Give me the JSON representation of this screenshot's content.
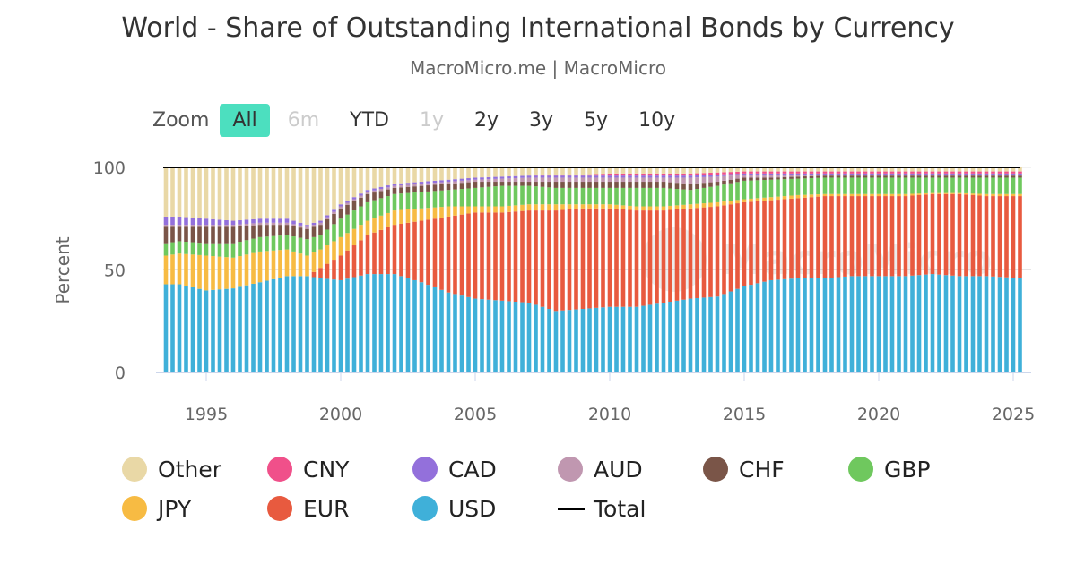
{
  "title": "World - Share of Outstanding International Bonds by Currency",
  "subtitle": "MacroMicro.me | MacroMicro",
  "zoom": {
    "label": "Zoom",
    "buttons": [
      {
        "label": "All",
        "state": "active"
      },
      {
        "label": "6m",
        "state": "disabled"
      },
      {
        "label": "YTD",
        "state": "normal"
      },
      {
        "label": "1y",
        "state": "disabled"
      },
      {
        "label": "2y",
        "state": "normal"
      },
      {
        "label": "3y",
        "state": "normal"
      },
      {
        "label": "5y",
        "state": "normal"
      },
      {
        "label": "10y",
        "state": "normal"
      }
    ]
  },
  "watermark": "MacroMicro",
  "chart_data": {
    "type": "bar",
    "stacked": true,
    "title": "World - Share of Outstanding International Bonds by Currency",
    "ylabel": "Percent",
    "xlabel": "",
    "ylim": [
      0,
      100
    ],
    "yticks": [
      "0",
      "50",
      "100"
    ],
    "xticks": [
      "1995",
      "2000",
      "2005",
      "2010",
      "2015",
      "2020",
      "2025"
    ],
    "frequency": "quarterly (linearly interpolated between anchor points)",
    "x": [
      1993.5,
      1994,
      1995,
      1996,
      1997,
      1998,
      1998.75,
      1999.25,
      2000,
      2001,
      2002,
      2003,
      2004,
      2005,
      2006,
      2007,
      2008,
      2009,
      2010,
      2011,
      2012,
      2013,
      2014,
      2015,
      2016,
      2017,
      2018,
      2019,
      2020,
      2021,
      2022,
      2023,
      2024,
      2025.25
    ],
    "series": [
      {
        "name": "USD",
        "color": "#3fb0d9",
        "values": [
          43,
          43,
          40,
          41,
          44,
          47,
          47,
          46,
          45,
          48,
          48,
          44,
          39,
          36,
          35,
          34,
          30,
          31,
          32,
          32,
          34,
          36,
          37,
          42,
          45,
          46,
          46,
          47,
          47,
          47,
          48,
          47,
          47,
          46
        ]
      },
      {
        "name": "EUR",
        "color": "#e85a3f",
        "values": [
          0,
          0,
          0,
          0,
          0,
          0,
          0,
          5,
          12,
          19,
          24,
          30,
          37,
          42,
          43,
          45,
          49,
          49,
          48,
          47,
          45,
          44,
          44,
          41,
          39,
          39,
          40,
          39,
          39,
          39,
          39,
          40,
          39,
          40
        ]
      },
      {
        "name": "JPY",
        "color": "#f7bb43",
        "values": [
          14,
          15,
          17,
          15,
          15,
          13,
          10,
          9,
          9,
          7,
          7,
          6,
          5,
          3,
          3,
          3,
          3,
          2,
          2,
          2,
          2,
          2,
          2,
          1.5,
          1.5,
          1.5,
          1,
          1,
          1,
          1,
          0.5,
          0.5,
          1,
          1
        ]
      },
      {
        "name": "GBP",
        "color": "#6fc85e",
        "values": [
          6,
          6,
          6,
          7,
          7,
          7,
          8,
          7,
          9,
          9,
          8,
          8,
          8,
          9,
          10,
          9,
          8,
          8,
          8,
          9,
          9,
          7,
          8,
          9,
          8.5,
          8,
          8,
          8,
          8,
          8,
          7.5,
          7.5,
          8,
          8
        ]
      },
      {
        "name": "CHF",
        "color": "#7a5548",
        "values": [
          8,
          7,
          8,
          8,
          6,
          5,
          5,
          5,
          5,
          4,
          3,
          3,
          3,
          3,
          2,
          2,
          3,
          3,
          3,
          3,
          3,
          3,
          2,
          1.5,
          1,
          1,
          1,
          1,
          1,
          1,
          1,
          1,
          1,
          1
        ]
      },
      {
        "name": "AUD",
        "color": "#c097b0",
        "values": [
          1,
          1,
          1,
          1,
          1,
          1,
          1,
          1,
          1,
          1,
          1,
          1,
          1,
          1,
          1.5,
          2,
          2,
          2,
          2,
          2,
          2,
          3,
          2.5,
          1.5,
          1.5,
          1,
          0.5,
          0.5,
          0.5,
          0.5,
          0.5,
          0.5,
          0.5,
          0.5
        ]
      },
      {
        "name": "CAD",
        "color": "#9370db",
        "values": [
          4,
          4,
          3,
          2,
          2,
          2,
          1,
          1,
          1,
          1,
          1,
          1,
          1,
          1,
          1,
          1,
          1,
          1,
          1,
          1,
          1,
          1,
          1,
          0.5,
          0.5,
          0.5,
          0.5,
          0.5,
          0.5,
          0.5,
          0.5,
          0.5,
          0.5,
          0.5
        ]
      },
      {
        "name": "CNY",
        "color": "#f0508a",
        "values": [
          0,
          0,
          0,
          0,
          0,
          0,
          0,
          0,
          0,
          0,
          0,
          0,
          0,
          0,
          0,
          0,
          0.5,
          0.5,
          1,
          1,
          1,
          1,
          1,
          1,
          1,
          1,
          1,
          1,
          1,
          1,
          1,
          1,
          1,
          1
        ]
      },
      {
        "name": "Other",
        "color": "#e9d8a6",
        "values": [
          24,
          24,
          25,
          26,
          25,
          25,
          28,
          26,
          18,
          11,
          8,
          7,
          6,
          5,
          4.5,
          4,
          3.5,
          3.5,
          3,
          3,
          3,
          3,
          2.5,
          2,
          2,
          2,
          2,
          2,
          2,
          2,
          2,
          2,
          2,
          2
        ]
      }
    ],
    "total": {
      "name": "Total",
      "color": "#000000",
      "value": 100
    },
    "legend": {
      "placement": "bottom",
      "order": [
        "Other",
        "CNY",
        "CAD",
        "AUD",
        "CHF",
        "GBP",
        "JPY",
        "EUR",
        "USD",
        "Total"
      ]
    }
  }
}
